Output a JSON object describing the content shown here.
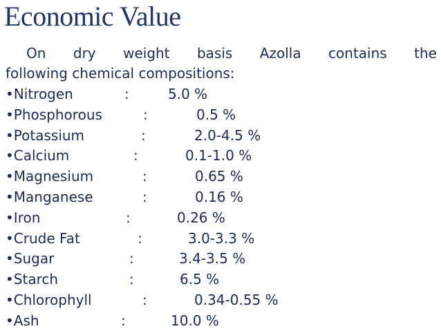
{
  "header": {
    "title": "Economic Value"
  },
  "intro": {
    "lines": [
      "On dry weight basis Azolla contains the",
      "following chemical compositions:"
    ]
  },
  "items": [
    {
      "label": "•Nitrogen",
      "separator": ":",
      "value": "5.0 %"
    },
    {
      "label": "•Phosphorous",
      "separator": ":",
      "value": "0.5 %"
    },
    {
      "label": "•Potassium",
      "separator": ":",
      "value": "2.0-4.5 %"
    },
    {
      "label": "•Calcium",
      "separator": ":",
      "value": "0.1-1.0 %"
    },
    {
      "label": "•Magnesium",
      "separator": ":",
      "value": "0.65 %"
    },
    {
      "label": "•Manganese",
      "separator": ":",
      "value": "0.16 %"
    },
    {
      "label": "•Iron",
      "separator": ":",
      "value": "0.26 %"
    },
    {
      "label": "•Crude Fat",
      "separator": ":",
      "value": "3.0-3.3 %"
    },
    {
      "label": "•Sugar",
      "separator": ":",
      "value": "3.4-3.5 %"
    },
    {
      "label": "•Starch",
      "separator": ":",
      "value": "6.5 %"
    },
    {
      "label": "•Chlorophyll",
      "separator": ":",
      "value": "0.34-0.55 %"
    },
    {
      "label": "•Ash",
      "separator": ":",
      "value": "10.0 %"
    }
  ]
}
